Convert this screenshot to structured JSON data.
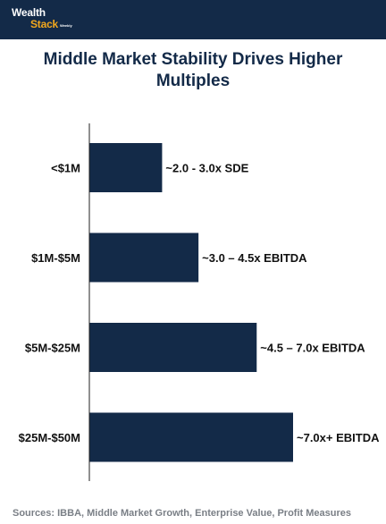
{
  "header": {
    "logo_word1": "Wealth",
    "logo_word2": "Stack",
    "logo_sub": "Weekly"
  },
  "chart_data": {
    "type": "bar",
    "orientation": "horizontal",
    "title_lines": [
      "Middle Market Stability Drives Higher",
      "Multiples"
    ],
    "categories": [
      "<$1M",
      "$1M-$5M",
      "$5M-$25M",
      "$25M-$50M"
    ],
    "values": [
      2.5,
      3.75,
      5.75,
      7.0
    ],
    "data_labels": [
      "~2.0 - 3.0x SDE",
      "~3.0 – 4.5x EBITDA",
      "~4.5 – 7.0x EBITDA",
      "~7.0x+ EBITDA"
    ],
    "xlim": [
      0,
      7.0
    ],
    "grid": false,
    "bar_color": "#132a48"
  },
  "footer": {
    "source": "Sources: IBBA, Middle Market Growth, Enterprise Value, Profit Measures"
  },
  "colors": {
    "navy": "#132a48",
    "accent": "#f2a81d",
    "muted": "#7a7f86"
  }
}
